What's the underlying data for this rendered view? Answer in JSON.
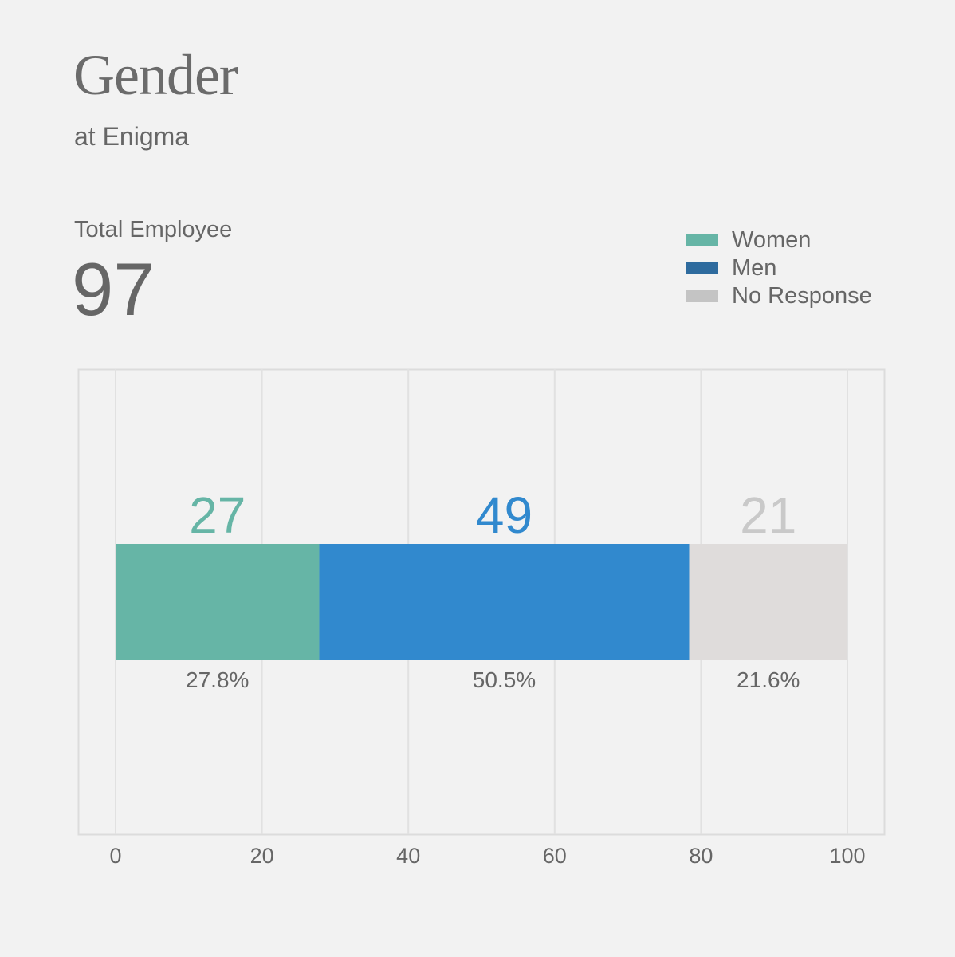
{
  "header": {
    "title": "Gender",
    "subtitle": "at Enigma"
  },
  "total": {
    "label": "Total Employee",
    "value": "97"
  },
  "legend": [
    {
      "label": "Women",
      "color": "#66b5a6"
    },
    {
      "label": "Men",
      "color": "#2e6b9e"
    },
    {
      "label": "No Response",
      "color": "#c4c4c4"
    }
  ],
  "chart_data": {
    "type": "bar",
    "orientation": "horizontal-stacked",
    "xlim": [
      0,
      100
    ],
    "xticks": [
      0,
      20,
      40,
      60,
      80,
      100
    ],
    "grid": true,
    "legend_position": "top-right",
    "series": [
      {
        "name": "Women",
        "count": 27,
        "percent": 27.8,
        "percent_label": "27.8%",
        "color": "#66b5a6",
        "label_color": "#66b5a6"
      },
      {
        "name": "Men",
        "count": 49,
        "percent": 50.5,
        "percent_label": "50.5%",
        "color": "#3189ce",
        "label_color": "#3189ce"
      },
      {
        "name": "No Response",
        "count": 21,
        "percent": 21.6,
        "percent_label": "21.6%",
        "color": "#dfdcdb",
        "label_color": "#c9c9c9"
      }
    ]
  }
}
